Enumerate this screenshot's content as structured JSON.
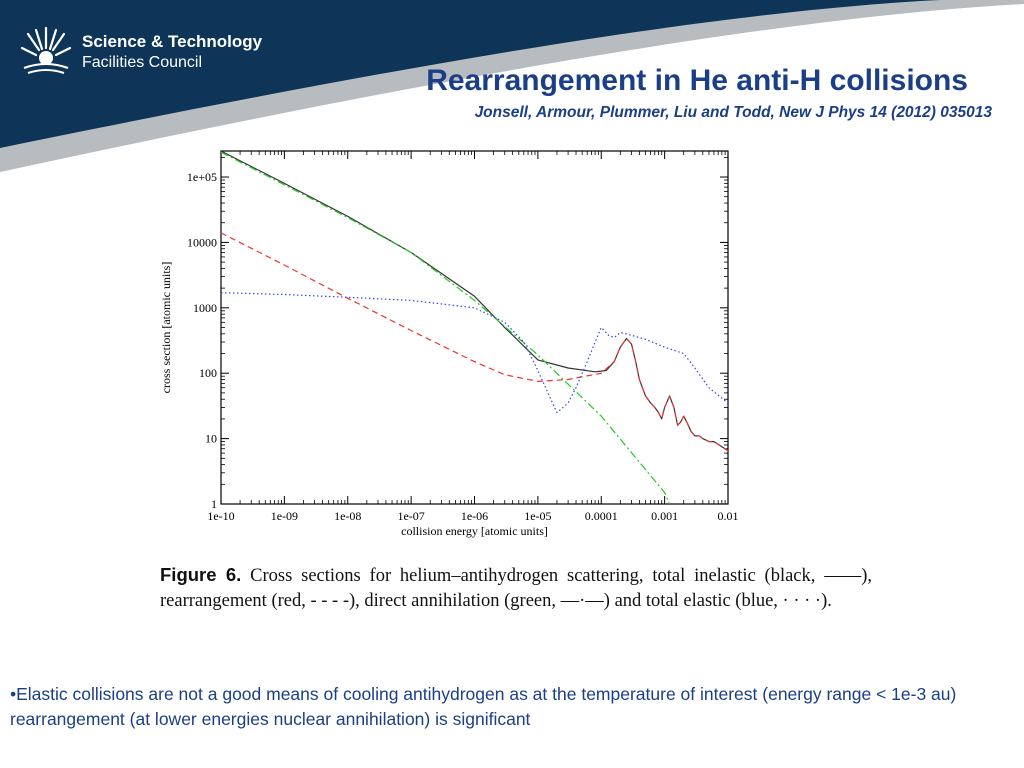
{
  "header": {
    "org_line1": "Science & Technology",
    "org_line2": "Facilities Council",
    "logo_icon": "stfc-sunburst-icon",
    "colors": {
      "band": "#0e3557",
      "accent": "#b7bcc0",
      "title": "#1b3f86"
    }
  },
  "slide": {
    "title": "Rearrangement in He anti-H collisions",
    "subtitle": "Jonsell, Armour, Plummer, Liu and Todd, New J Phys 14 (2012) 035013"
  },
  "caption": {
    "label": "Figure 6.",
    "text": "Cross sections for helium–antihydrogen scattering, total inelastic (black, ——), rearrangement (red, - - - -), direct annihilation (green, —·—) and total elastic (blue, · · · ·)."
  },
  "bullet": {
    "text": "•Elastic collisions are not a good means of cooling antihydrogen as at the temperature of interest (energy range < 1e-3 au)  rearrangement (at lower energies nuclear annihilation) is significant"
  },
  "chart_data": {
    "type": "line",
    "title": "",
    "xlabel": "collision energy [atomic units]",
    "ylabel": "cross section [atomic units]",
    "x_scale": "log",
    "y_scale": "log",
    "xlim": [
      1e-10,
      0.01
    ],
    "ylim": [
      1,
      250000
    ],
    "x_ticks": [
      {
        "v": 1e-10,
        "label": "1e-10"
      },
      {
        "v": 1e-09,
        "label": "1e-09"
      },
      {
        "v": 1e-08,
        "label": "1e-08"
      },
      {
        "v": 1e-07,
        "label": "1e-07"
      },
      {
        "v": 1e-06,
        "label": "1e-06"
      },
      {
        "v": 1e-05,
        "label": "1e-05"
      },
      {
        "v": 0.0001,
        "label": "0.0001"
      },
      {
        "v": 0.001,
        "label": "0.001"
      },
      {
        "v": 0.01,
        "label": "0.01"
      }
    ],
    "y_ticks": [
      {
        "v": 1,
        "label": "1"
      },
      {
        "v": 10,
        "label": "10"
      },
      {
        "v": 100,
        "label": "100"
      },
      {
        "v": 1000,
        "label": "1000"
      },
      {
        "v": 10000,
        "label": "10000"
      },
      {
        "v": 100000,
        "label": "1e+05"
      }
    ],
    "grid": false,
    "legend": "none",
    "series": [
      {
        "color": "#333333",
        "style": "solid",
        "x": [
          1e-10,
          1e-09,
          1e-08,
          1e-07,
          1e-06,
          3e-06,
          1e-05,
          3e-05,
          8e-05,
          0.00012,
          0.00016,
          0.0002,
          0.00025,
          0.0003,
          0.00035,
          0.0004,
          0.0005,
          0.0006,
          0.0007,
          0.0008,
          0.0009,
          0.001,
          0.0012,
          0.0014,
          0.0016,
          0.0018,
          0.002,
          0.0023,
          0.0026,
          0.003,
          0.0035,
          0.004,
          0.005,
          0.006,
          0.008,
          0.01
        ],
        "y": [
          250000,
          80000,
          25000,
          7000,
          1500,
          500,
          160,
          120,
          105,
          110,
          150,
          250,
          340,
          280,
          150,
          80,
          45,
          35,
          30,
          25,
          20,
          30,
          45,
          30,
          16,
          18,
          22,
          17,
          13,
          11,
          11,
          10,
          9,
          9,
          7.5,
          6.5
        ]
      },
      {
        "color": "#ee3333",
        "style": "dashed",
        "x": [
          1e-10,
          1e-09,
          1e-08,
          1e-07,
          1e-06,
          3e-06,
          1e-05,
          3e-05,
          0.0001,
          0.00016,
          0.0002,
          0.00025,
          0.0003,
          0.00035,
          0.0004,
          0.0005,
          0.0006,
          0.0007,
          0.0008,
          0.0009,
          0.001,
          0.0012,
          0.0014,
          0.0016,
          0.0018,
          0.002,
          0.0023,
          0.0026,
          0.003,
          0.0035,
          0.004,
          0.005,
          0.006,
          0.008,
          0.01
        ],
        "y": [
          14000,
          4500,
          1400,
          450,
          150,
          95,
          75,
          80,
          100,
          150,
          250,
          340,
          280,
          150,
          80,
          45,
          35,
          30,
          25,
          20,
          30,
          45,
          30,
          16,
          18,
          22,
          17,
          13,
          11,
          11,
          10,
          9,
          9,
          7.5,
          6.5
        ]
      },
      {
        "color": "#22cc22",
        "style": "dashdot",
        "x": [
          1e-10,
          1e-09,
          1e-08,
          1e-07,
          1e-06,
          1e-05,
          0.0001,
          0.001,
          0.0012
        ],
        "y": [
          240000,
          76000,
          24000,
          7000,
          1300,
          190,
          22,
          1.5,
          1
        ]
      },
      {
        "color": "#3344ee",
        "style": "dotted",
        "x": [
          1e-10,
          1e-09,
          1e-08,
          1e-07,
          1e-06,
          3e-06,
          6e-06,
          1e-05,
          1.6e-05,
          2e-05,
          3e-05,
          4e-05,
          6e-05,
          8e-05,
          0.0001,
          0.00013,
          0.00016,
          0.0002,
          0.0003,
          0.0005,
          0.001,
          0.002,
          0.003,
          0.005,
          0.01
        ],
        "y": [
          1700,
          1600,
          1450,
          1300,
          1000,
          600,
          300,
          110,
          40,
          25,
          35,
          60,
          150,
          300,
          500,
          380,
          350,
          420,
          380,
          330,
          250,
          200,
          120,
          60,
          35
        ]
      }
    ]
  }
}
